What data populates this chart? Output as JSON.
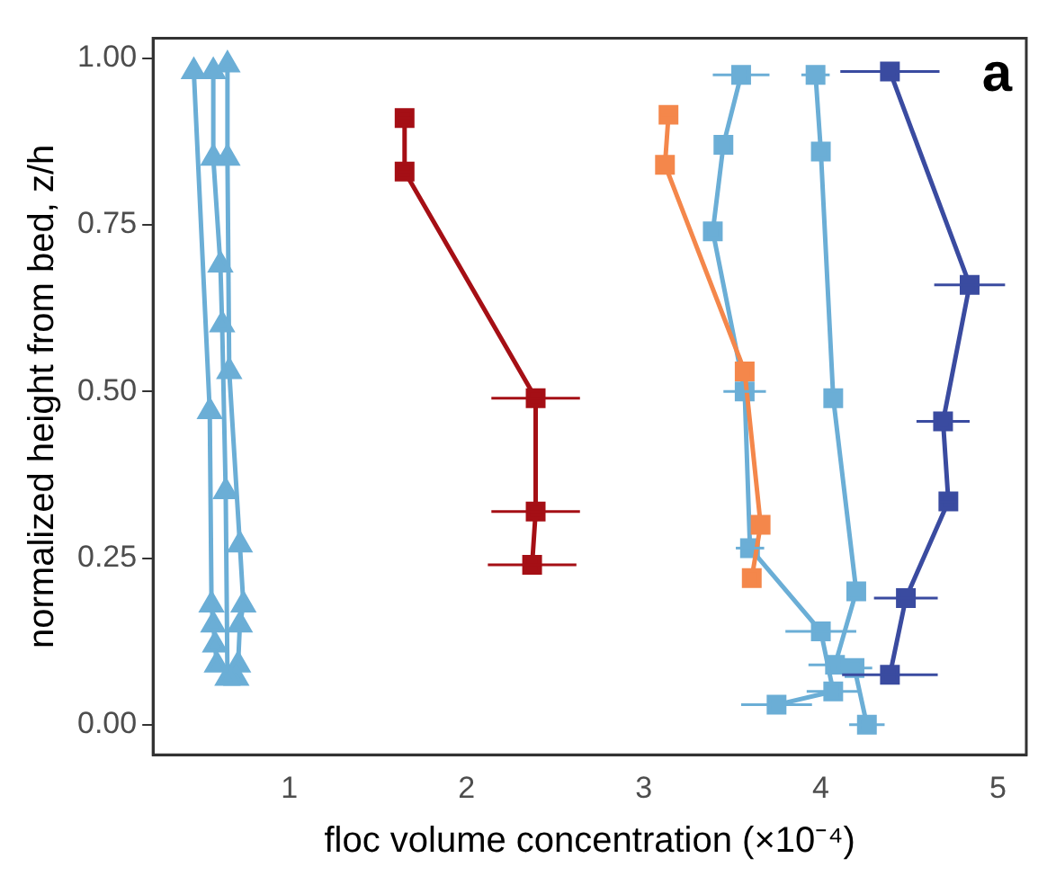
{
  "chart_data": {
    "type": "line",
    "xlabel": "floc volume concentration (×10⁻⁴)",
    "ylabel": "normalized height from bed, z/h",
    "annotations": [
      "a"
    ],
    "xlim": [
      0.23,
      5.16
    ],
    "xticks": [
      1,
      2,
      3,
      4,
      5
    ],
    "ylim": [
      -0.045,
      1.03
    ],
    "yticks": [
      {
        "value": 0,
        "label": "0.00"
      },
      {
        "value": 0.25,
        "label": "0.25"
      },
      {
        "value": 0.5,
        "label": "0.50"
      },
      {
        "value": 0.75,
        "label": "0.75"
      },
      {
        "value": 1,
        "label": "1.00"
      }
    ],
    "marker": "square",
    "line_style": "solid",
    "grid": false,
    "legend": false,
    "series": [
      {
        "color": "#6baed6",
        "marker": "triangle",
        "x": [
          0.46,
          0.55,
          0.56,
          0.57,
          0.58,
          0.59
        ],
        "values": [
          0.98,
          0.47,
          0.18,
          0.15,
          0.12,
          0.09
        ]
      },
      {
        "color": "#6baed6",
        "marker": "triangle",
        "x": [
          0.57,
          0.57,
          0.61,
          0.62,
          0.64,
          0.65
        ],
        "values": [
          0.98,
          0.85,
          0.69,
          0.6,
          0.35,
          0.07
        ]
      },
      {
        "color": "#6baed6",
        "marker": "triangle",
        "x": [
          0.65,
          0.65,
          0.66,
          0.72,
          0.74,
          0.72,
          0.71,
          0.7
        ],
        "values": [
          0.99,
          0.85,
          0.53,
          0.27,
          0.18,
          0.15,
          0.09,
          0.07
        ]
      },
      {
        "color": "#a50f15",
        "x": [
          1.65,
          1.65,
          2.39,
          2.39,
          2.37
        ],
        "values": [
          0.91,
          0.83,
          0.49,
          0.32,
          0.24
        ],
        "xerrors": [
          0.04,
          0.04,
          0.25,
          0.25,
          0.25
        ]
      },
      {
        "color": "#f4874b",
        "x": [
          3.14,
          3.12,
          3.57,
          3.66,
          3.61
        ],
        "values": [
          0.915,
          0.84,
          0.53,
          0.3,
          0.22
        ],
        "xerrors": [
          0.04,
          null,
          null,
          null,
          null
        ]
      },
      {
        "color": "#6baed6",
        "x": [
          3.55,
          3.45,
          3.39,
          3.57,
          3.6,
          4.0,
          4.07,
          3.75
        ],
        "values": [
          0.975,
          0.87,
          0.74,
          0.5,
          0.265,
          0.14,
          0.05,
          0.03
        ],
        "xerrors": [
          0.16,
          null,
          null,
          0.12,
          0.08,
          0.2,
          0.15,
          0.2
        ]
      },
      {
        "color": "#6baed6",
        "x": [
          3.97,
          4.0,
          4.07,
          4.2,
          4.08,
          4.19,
          4.26
        ],
        "values": [
          0.975,
          0.86,
          0.49,
          0.2,
          0.09,
          0.085,
          0.0
        ],
        "xerrors": [
          0.08,
          null,
          null,
          null,
          0.15,
          0.1,
          0.1
        ]
      },
      {
        "color": "#3a4ba0",
        "x": [
          4.39,
          4.84,
          4.69,
          4.72,
          4.48,
          4.39
        ],
        "values": [
          0.98,
          0.66,
          0.455,
          0.335,
          0.19,
          0.075
        ],
        "xerrors": [
          0.28,
          0.2,
          0.15,
          0.05,
          0.18,
          0.27
        ]
      }
    ]
  }
}
